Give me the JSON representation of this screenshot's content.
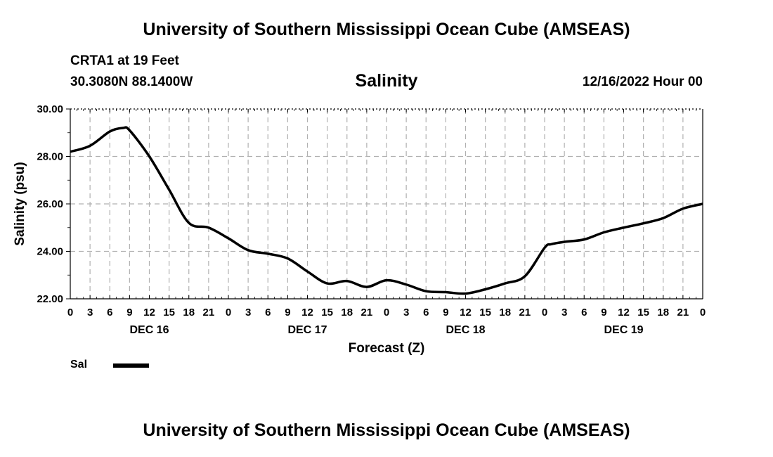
{
  "header": {
    "title": "University of Southern Mississippi Ocean Cube (AMSEAS)",
    "station": "CRTA1 at 19 Feet",
    "coords": "30.3080N  88.1400W",
    "chart_title": "Salinity",
    "date_hour": "12/16/2022 Hour 00"
  },
  "footer": {
    "title": "University of Southern Mississippi Ocean Cube (AMSEAS)"
  },
  "legend": {
    "label": "Sal"
  },
  "chart_data": {
    "type": "line",
    "title": "Salinity",
    "xlabel": "Forecast (Z)",
    "ylabel": "Salinity (psu)",
    "ylim": [
      22,
      30
    ],
    "yticks": [
      "22.00",
      "24.00",
      "26.00",
      "28.00",
      "30.00"
    ],
    "xlim": [
      0,
      96
    ],
    "xtick_labels": [
      "0",
      "3",
      "6",
      "9",
      "12",
      "15",
      "18",
      "21",
      "0",
      "3",
      "6",
      "9",
      "12",
      "15",
      "18",
      "21",
      "0",
      "3",
      "6",
      "9",
      "12",
      "15",
      "18",
      "21",
      "0",
      "3",
      "6",
      "9",
      "12",
      "15",
      "18",
      "21",
      "0"
    ],
    "day_labels": [
      {
        "hour": 12,
        "label": "DEC 16"
      },
      {
        "hour": 36,
        "label": "DEC 17"
      },
      {
        "hour": 60,
        "label": "DEC 18"
      },
      {
        "hour": 84,
        "label": "DEC 19"
      }
    ],
    "grid": true,
    "series": [
      {
        "name": "Sal",
        "color": "#000000",
        "x": [
          0,
          3,
          6,
          8,
          9,
          12,
          15,
          18,
          21,
          24,
          27,
          30,
          33,
          36,
          39,
          42,
          45,
          48,
          51,
          54,
          57,
          60,
          63,
          66,
          69,
          72,
          73,
          75,
          78,
          81,
          84,
          87,
          90,
          93,
          96
        ],
        "y": [
          28.2,
          28.45,
          29.05,
          29.2,
          29.1,
          28.0,
          26.6,
          25.2,
          25.0,
          24.55,
          24.05,
          23.9,
          23.7,
          23.15,
          22.65,
          22.75,
          22.5,
          22.78,
          22.6,
          22.32,
          22.28,
          22.22,
          22.4,
          22.65,
          22.95,
          24.15,
          24.3,
          24.4,
          24.5,
          24.8,
          25.0,
          25.18,
          25.4,
          25.8,
          26.0
        ]
      }
    ]
  }
}
